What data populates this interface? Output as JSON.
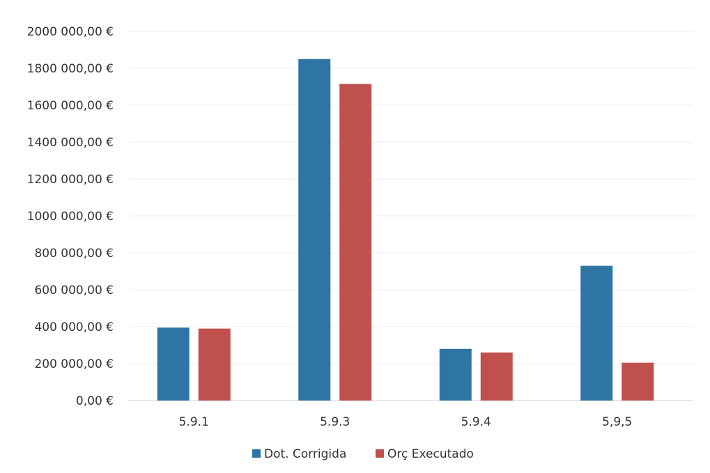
{
  "chart_data": {
    "type": "bar",
    "title": "",
    "xlabel": "",
    "ylabel": "",
    "categories": [
      "5.9.1",
      "5.9.3",
      "5.9.4",
      "5,9,5"
    ],
    "series": [
      {
        "name": "Dot. Corrigida",
        "color": "#2e75a6",
        "values": [
          395000,
          1850000,
          280000,
          730000
        ]
      },
      {
        "name": "Orç Executado",
        "color": "#c0504d",
        "values": [
          390000,
          1715000,
          260000,
          205000
        ]
      }
    ],
    "ylim": [
      0,
      2000000
    ],
    "y_ticks": [
      {
        "value": 0,
        "label": "0,00 €"
      },
      {
        "value": 200000,
        "label": "200 000,00 €"
      },
      {
        "value": 400000,
        "label": "400 000,00 €"
      },
      {
        "value": 600000,
        "label": "600 000,00 €"
      },
      {
        "value": 800000,
        "label": "800 000,00 €"
      },
      {
        "value": 1000000,
        "label": "1000 000,00 €"
      },
      {
        "value": 1200000,
        "label": "1200 000,00 €"
      },
      {
        "value": 1400000,
        "label": "1400 000,00 €"
      },
      {
        "value": 1600000,
        "label": "1600 000,00 €"
      },
      {
        "value": 1800000,
        "label": "1800 000,00 €"
      },
      {
        "value": 2000000,
        "label": "2000 000,00 €"
      }
    ],
    "grid": true,
    "legend_position": "bottom-center"
  }
}
